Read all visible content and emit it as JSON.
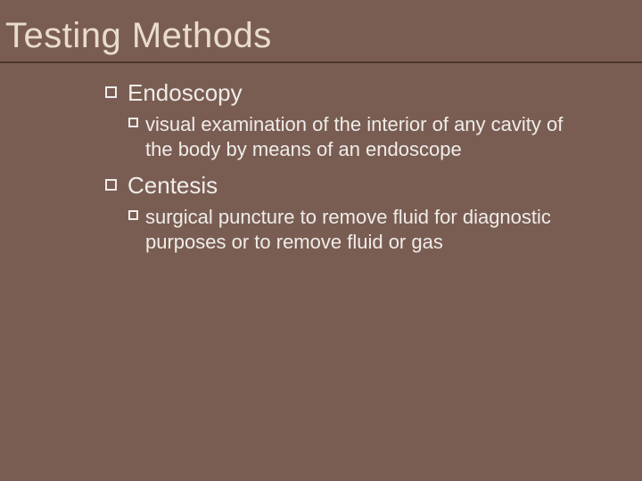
{
  "slide": {
    "title": "Testing Methods",
    "background_color": "#7a5d52",
    "title_color": "#e9dccb",
    "text_color": "#efece9",
    "divider_color": "#4d372f",
    "title_fontsize": 40,
    "item_fontsize": 26,
    "sub_fontsize": 22,
    "items": [
      {
        "label": "Endoscopy",
        "sub": "visual examination of the interior of any cavity of the body by means of an endoscope"
      },
      {
        "label": "Centesis",
        "sub": "surgical puncture to remove fluid for diagnostic purposes or to remove fluid or gas"
      }
    ]
  }
}
